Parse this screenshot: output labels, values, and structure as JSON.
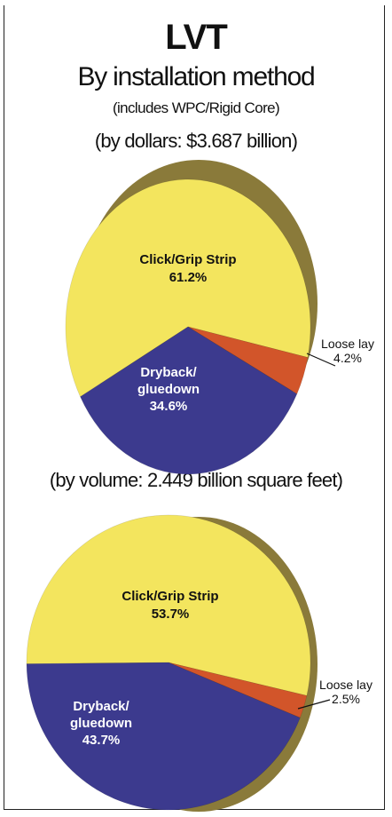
{
  "header": {
    "title": "LVT",
    "subtitle": "By installation method",
    "note": "(includes WPC/Rigid Core)"
  },
  "colors": {
    "click": "#f3e55e",
    "dryback": "#3c3a8e",
    "loose": "#d2552a",
    "rim": "#8a7a3a"
  },
  "chart_data": [
    {
      "type": "pie",
      "title": "(by dollars: $3.687 billion)",
      "slices": [
        {
          "label": "Click/Grip Strip",
          "value": 61.2,
          "display": "61.2%"
        },
        {
          "label": "Loose lay",
          "value": 4.2,
          "display": "4.2%"
        },
        {
          "label": "Dryback/ gluedown",
          "value": 34.6,
          "display": "34.6%"
        }
      ]
    },
    {
      "type": "pie",
      "title": "(by volume: 2.449 billion square feet)",
      "slices": [
        {
          "label": "Click/Grip Strip",
          "value": 53.7,
          "display": "53.7%"
        },
        {
          "label": "Loose lay",
          "value": 2.5,
          "display": "2.5%"
        },
        {
          "label": "Dryback/ gluedown",
          "value": 43.7,
          "display": "43.7%"
        }
      ]
    }
  ],
  "labels": {
    "click": "Click/Grip Strip",
    "dryback_line1": "Dryback/",
    "dryback_line2": "gluedown",
    "loose": "Loose lay"
  }
}
